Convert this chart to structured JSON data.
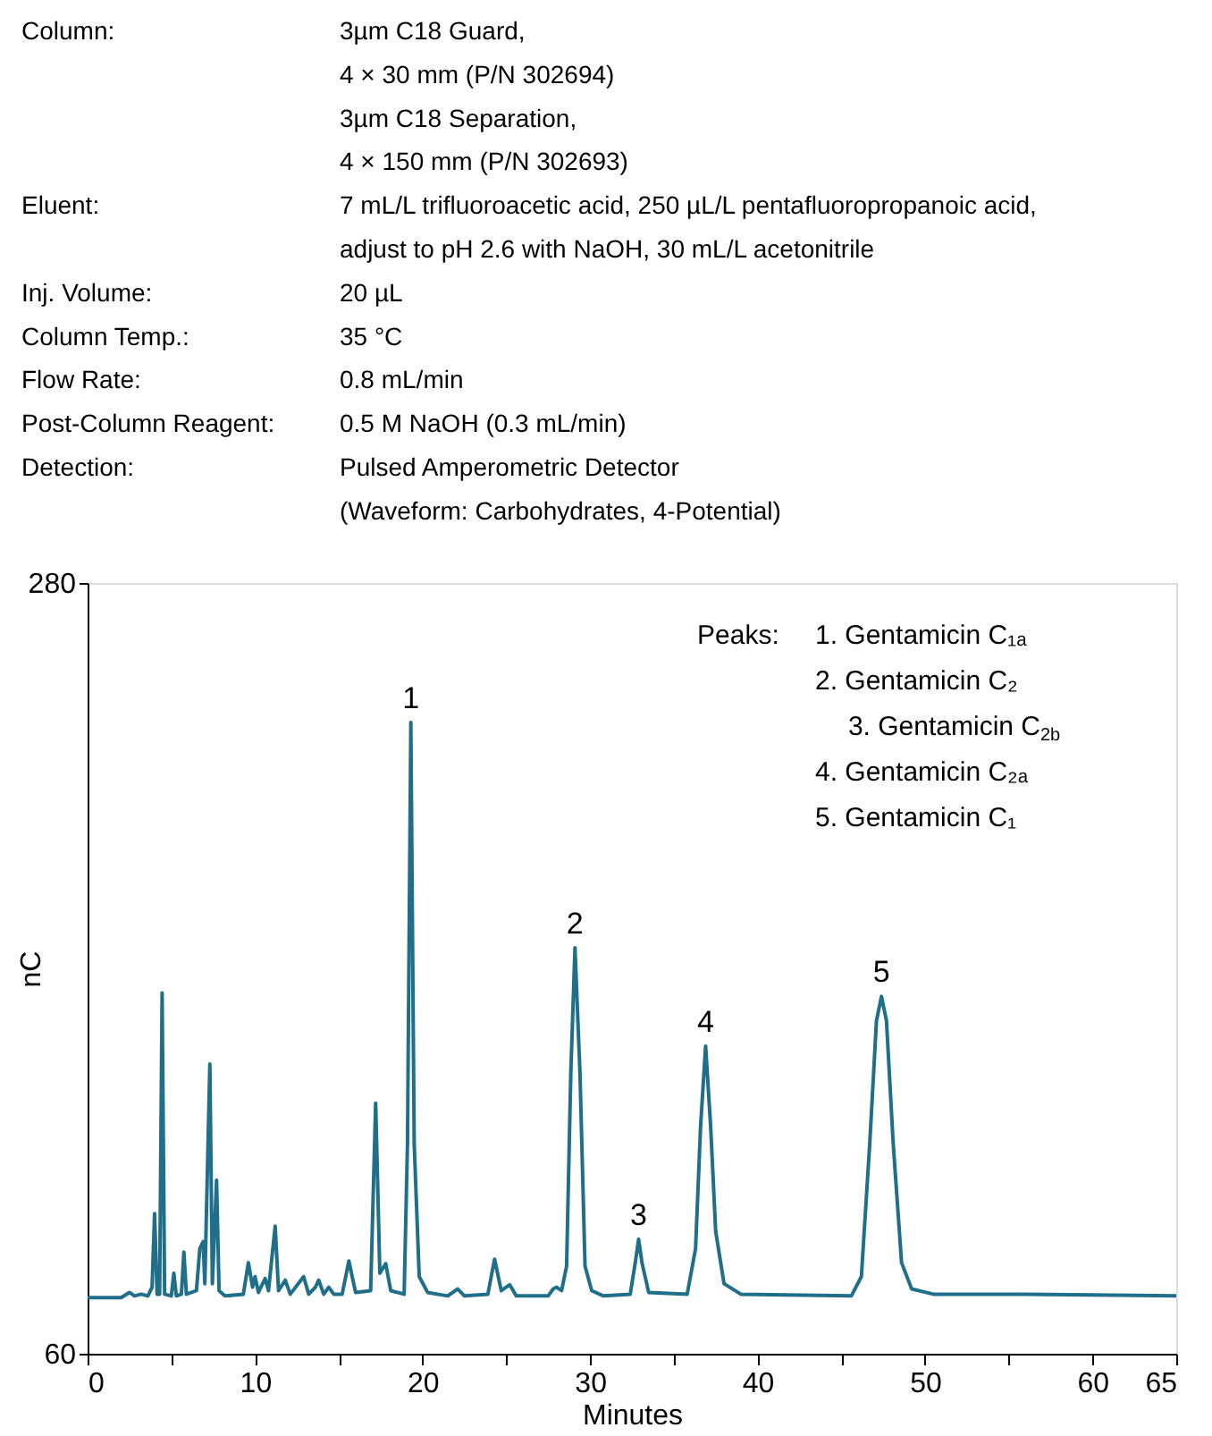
{
  "chart_data": {
    "type": "line",
    "subtitle": [
      "Column:\t3µm C18 Guard,",
      "\t4 × 30 mm (P/N 302694)",
      "\t3µm C18 Separation,",
      "\t4 × 150 mm (P/N 302693)",
      "Eluent:\t7 mL/L trifluoroacetic acid, 250 µL/L pentafluoropropanoic acid,",
      "\tadjust to pH 2.6 with NaOH, 30 mL/L acetonitrile",
      "Inj. Volume:\t20 µL",
      "Column Temp.:\t35 °C",
      "Flow Rate:\t0.8 mL/min",
      "Post-Column Reagent:\t0.5 M NaOH (0.3 mL/min)",
      "Detection:\tPulsed Amperometric Detector",
      "\t(Waveform: Carbohydrates, 4-Potential)"
    ],
    "xlabel": "Minutes",
    "ylabel": "nC",
    "xlim": [
      0,
      65
    ],
    "ylim": [
      60,
      280
    ],
    "xticks": [
      0,
      {
        "value": 5,
        "label": null
      },
      10,
      {
        "value": 15,
        "label": null
      },
      20,
      {
        "value": 25,
        "label": null
      },
      30,
      {
        "value": 35,
        "label": null
      },
      40,
      {
        "value": 45,
        "label": null
      },
      50,
      {
        "value": 55,
        "label": null
      },
      60,
      65
    ],
    "yticks": [
      60,
      280
    ],
    "grid": false,
    "legend": false,
    "marker": "none",
    "line_style": "solid",
    "annotations": [
      "Peaks:\t1. Gentamicin C₁ₐ",
      "\t2. Gentamicin C₂",
      "\t3. Gentamicin C$_{2b}$",
      "\t4. Gentamicin C₂ₐ",
      "\t5. Gentamicin C₁",
      {
        "text": "1",
        "x": 19.3,
        "y": 240.2
      },
      {
        "text": "2",
        "x": 29.1,
        "y": 175.9
      },
      {
        "text": "3",
        "x": 32.9,
        "y": 92.7
      },
      {
        "text": "4",
        "x": 36.9,
        "y": 147.8
      },
      {
        "text": "5",
        "x": 47.4,
        "y": 162
      }
    ],
    "series": [
      {
        "color": "#1f6f8b",
        "x": [
          0,
          2.0,
          2.5,
          2.8,
          3.2,
          3.6,
          3.85,
          4.0,
          4.15,
          4.3,
          4.45,
          4.6,
          5.0,
          5.15,
          5.3,
          5.6,
          5.75,
          5.9,
          6.5,
          6.7,
          6.9,
          7.0,
          7.3,
          7.45,
          7.7,
          7.85,
          8.2,
          9.3,
          9.6,
          9.85,
          10.0,
          10.2,
          10.6,
          10.8,
          11.2,
          11.4,
          11.8,
          12.1,
          12.9,
          13.2,
          13.6,
          13.8,
          14.1,
          14.4,
          14.7,
          15.2,
          15.6,
          16.0,
          16.9,
          17.2,
          17.45,
          17.8,
          18.1,
          18.9,
          19.1,
          19.3,
          19.5,
          19.8,
          20.3,
          21.5,
          22.1,
          22.5,
          23.9,
          24.3,
          24.7,
          25.2,
          25.6,
          27.5,
          27.8,
          28.0,
          28.3,
          28.6,
          28.85,
          29.1,
          29.4,
          29.7,
          30.1,
          30.8,
          32.4,
          32.7,
          32.9,
          33.1,
          33.5,
          35.8,
          36.3,
          36.6,
          36.9,
          37.2,
          37.5,
          38.0,
          39,
          45.6,
          46.2,
          46.7,
          47.1,
          47.4,
          47.7,
          48.1,
          48.6,
          49.2,
          50.5,
          56,
          65
        ],
        "values": [
          76,
          76,
          77.5,
          76.5,
          77,
          76.5,
          79,
          100,
          77,
          77,
          163,
          77,
          76.5,
          83,
          76.5,
          77,
          89,
          77,
          78,
          90,
          92,
          80,
          142.7,
          80,
          109.5,
          78,
          76.5,
          77,
          86,
          79,
          82,
          77.5,
          81.5,
          78,
          96.4,
          78,
          81,
          77,
          82,
          77,
          79,
          81,
          77,
          79,
          77,
          77,
          86.5,
          77.5,
          78,
          131.5,
          83,
          85.7,
          78,
          77,
          120,
          240.2,
          120,
          82,
          77.5,
          76.5,
          78.5,
          76.5,
          77,
          87,
          78,
          79.7,
          76.5,
          76.5,
          78.5,
          79,
          78,
          85,
          140,
          175.9,
          140,
          85,
          78,
          76.5,
          77,
          86,
          92.7,
          86,
          77.5,
          77,
          90,
          125,
          147.8,
          125,
          95,
          80,
          77,
          76.5,
          82,
          120,
          155,
          162,
          155,
          120,
          86,
          78.5,
          77,
          77,
          76.5
        ]
      }
    ]
  }
}
